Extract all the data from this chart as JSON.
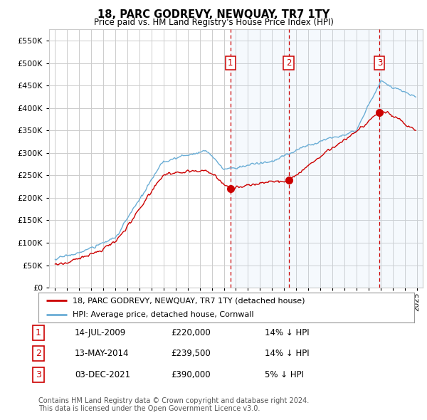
{
  "title": "18, PARC GODREVY, NEWQUAY, TR7 1TY",
  "subtitle": "Price paid vs. HM Land Registry's House Price Index (HPI)",
  "legend_line1": "18, PARC GODREVY, NEWQUAY, TR7 1TY (detached house)",
  "legend_line2": "HPI: Average price, detached house, Cornwall",
  "sales": [
    {
      "num": 1,
      "date": "14-JUL-2009",
      "price": 220000,
      "pct": "14%",
      "dir": "↓",
      "x_year": 2009.54
    },
    {
      "num": 2,
      "date": "13-MAY-2014",
      "price": 239500,
      "pct": "14%",
      "dir": "↓",
      "x_year": 2014.37
    },
    {
      "num": 3,
      "date": "03-DEC-2021",
      "price": 390000,
      "pct": "5%",
      "dir": "↓",
      "x_year": 2021.92
    }
  ],
  "footer_line1": "Contains HM Land Registry data © Crown copyright and database right 2024.",
  "footer_line2": "This data is licensed under the Open Government Licence v3.0.",
  "ylim": [
    0,
    575000
  ],
  "yticks": [
    0,
    50000,
    100000,
    150000,
    200000,
    250000,
    300000,
    350000,
    400000,
    450000,
    500000,
    550000
  ],
  "xlim": [
    1994.5,
    2025.5
  ],
  "hpi_color": "#6baed6",
  "price_color": "#cc0000",
  "vline_color": "#cc0000",
  "shade_color": "#dbeeff",
  "background_color": "#ffffff",
  "grid_color": "#cccccc"
}
